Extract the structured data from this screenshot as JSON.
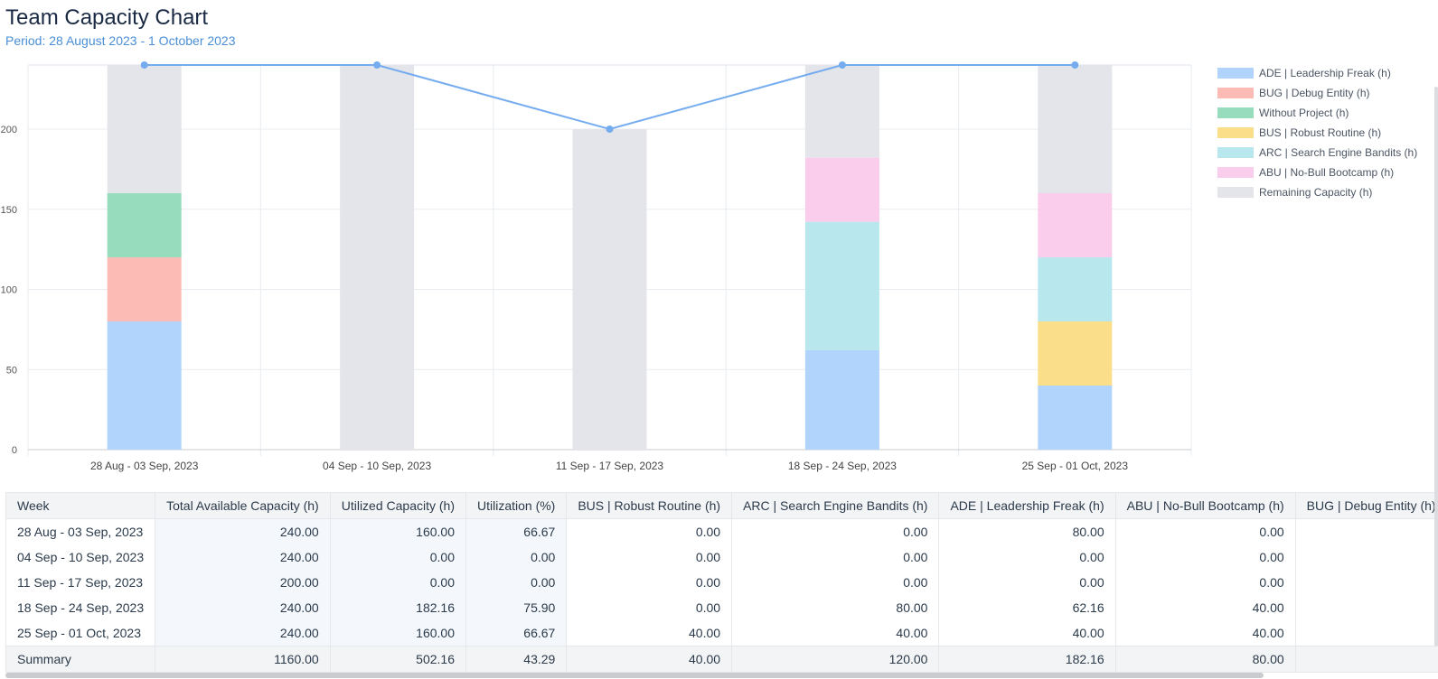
{
  "header": {
    "title": "Team Capacity Chart",
    "period": "Period: 28 August 2023 - 1 October 2023"
  },
  "colors": {
    "ade": "#b0d4fb",
    "bug": "#fdbbb6",
    "without": "#97ddbd",
    "bus": "#fbde8a",
    "arc": "#b8e7ee",
    "abu": "#fbcdec",
    "remaining": "#e4e5ea",
    "line": "#74acef",
    "grid": "#e8ecf0"
  },
  "chart_data": {
    "type": "bar",
    "stacked": true,
    "title": "Team Capacity Chart",
    "ylim": [
      0,
      240
    ],
    "yticks": [
      0,
      50,
      100,
      150,
      200
    ],
    "categories": [
      "28 Aug - 03 Sep, 2023",
      "04 Sep - 10 Sep, 2023",
      "11 Sep - 17 Sep, 2023",
      "18 Sep - 24 Sep, 2023",
      "25 Sep - 01 Oct, 2023"
    ],
    "series": [
      {
        "key": "ade",
        "name": "ADE | Leadership Freak (h)",
        "values": [
          80,
          0,
          0,
          62.16,
          40
        ]
      },
      {
        "key": "bug",
        "name": "BUG | Debug Entity (h)",
        "values": [
          40,
          0,
          0,
          0,
          0
        ]
      },
      {
        "key": "without",
        "name": "Without Project (h)",
        "values": [
          40,
          0,
          0,
          0,
          0
        ]
      },
      {
        "key": "bus",
        "name": "BUS | Robust Routine (h)",
        "values": [
          0,
          0,
          0,
          0,
          40
        ]
      },
      {
        "key": "arc",
        "name": "ARC | Search Engine Bandits (h)",
        "values": [
          0,
          0,
          0,
          80,
          40
        ]
      },
      {
        "key": "abu",
        "name": "ABU | No-Bull Bootcamp (h)",
        "values": [
          0,
          0,
          0,
          40,
          40
        ]
      },
      {
        "key": "remaining",
        "name": "Remaining Capacity (h)",
        "values": [
          80,
          240,
          200,
          57.84,
          80
        ]
      }
    ],
    "line": {
      "name": "Total Available Capacity (h)",
      "values": [
        240,
        240,
        200,
        240,
        240
      ]
    },
    "legend_position": "right"
  },
  "table": {
    "columns": [
      "Week",
      "Total Available Capacity (h)",
      "Utilized Capacity (h)",
      "Utilization (%)",
      "BUS | Robust Routine (h)",
      "ARC | Search Engine Bandits (h)",
      "ADE | Leadership Freak (h)",
      "ABU | No-Bull Bootcamp (h)",
      "BUG | Debug Entity (h)"
    ],
    "rows": [
      [
        "28 Aug - 03 Sep, 2023",
        "240.00",
        "160.00",
        "66.67",
        "0.00",
        "0.00",
        "80.00",
        "0.00",
        ""
      ],
      [
        "04 Sep - 10 Sep, 2023",
        "240.00",
        "0.00",
        "0.00",
        "0.00",
        "0.00",
        "0.00",
        "0.00",
        ""
      ],
      [
        "11 Sep - 17 Sep, 2023",
        "200.00",
        "0.00",
        "0.00",
        "0.00",
        "0.00",
        "0.00",
        "0.00",
        ""
      ],
      [
        "18 Sep - 24 Sep, 2023",
        "240.00",
        "182.16",
        "75.90",
        "0.00",
        "80.00",
        "62.16",
        "40.00",
        ""
      ],
      [
        "25 Sep - 01 Oct, 2023",
        "240.00",
        "160.00",
        "66.67",
        "40.00",
        "40.00",
        "40.00",
        "40.00",
        ""
      ]
    ],
    "summary": [
      "Summary",
      "1160.00",
      "502.16",
      "43.29",
      "40.00",
      "120.00",
      "182.16",
      "80.00",
      ""
    ]
  }
}
